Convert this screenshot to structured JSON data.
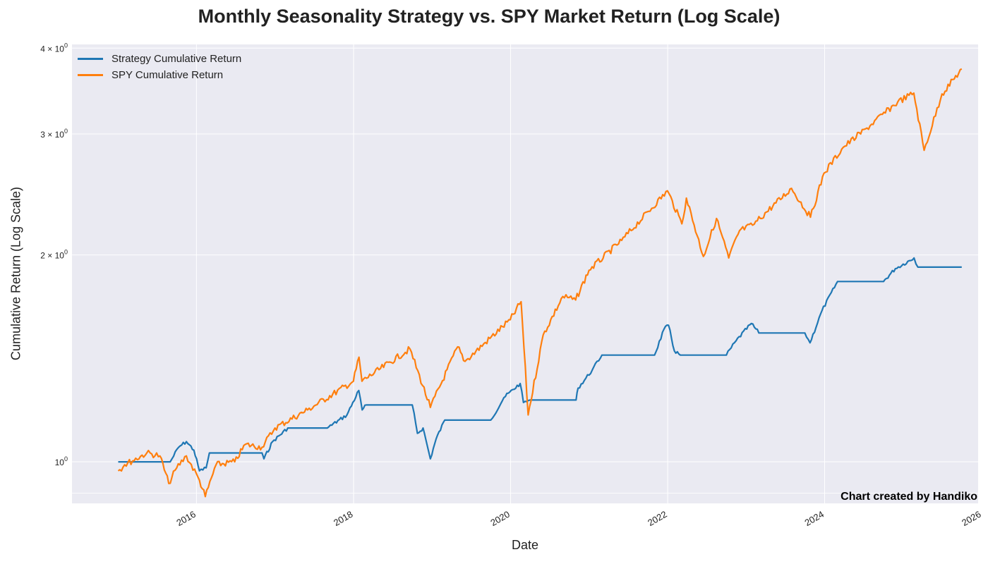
{
  "chart_data": {
    "type": "line",
    "title": "Monthly Seasonality Strategy vs. SPY Market Return (Log Scale)",
    "xlabel": "Date",
    "ylabel": "Cumulative Return (Log Scale)",
    "credit": "Chart created by Handiko",
    "y_scale": "log",
    "ylim": [
      0.87,
      4.05
    ],
    "xlim": [
      "2014-06-01",
      "2025-12-15"
    ],
    "grid": true,
    "legend_position": "upper-left",
    "y_ticks": [
      {
        "value": 1,
        "base": "10",
        "exp": "0"
      },
      {
        "value": 2,
        "base": "2 × 10",
        "exp": "0"
      },
      {
        "value": 3,
        "base": "3 × 10",
        "exp": "0"
      },
      {
        "value": 4,
        "base": "4 × 10",
        "exp": "0"
      }
    ],
    "x_ticks": [
      "2016",
      "2018",
      "2020",
      "2022",
      "2024",
      "2026"
    ],
    "series": [
      {
        "name": "Strategy Cumulative Return",
        "color": "#1f77b4",
        "points": [
          [
            "2015-01-02",
            1.0
          ],
          [
            "2015-09-01",
            1.0
          ],
          [
            "2015-10-10",
            1.05
          ],
          [
            "2015-11-15",
            1.07
          ],
          [
            "2015-12-20",
            1.04
          ],
          [
            "2016-01-15",
            0.97
          ],
          [
            "2016-02-15",
            0.98
          ],
          [
            "2016-03-01",
            1.03
          ],
          [
            "2016-11-01",
            1.03
          ],
          [
            "2016-11-10",
            1.01
          ],
          [
            "2016-12-20",
            1.07
          ],
          [
            "2017-03-01",
            1.12
          ],
          [
            "2017-09-01",
            1.12
          ],
          [
            "2017-12-01",
            1.17
          ],
          [
            "2018-01-25",
            1.27
          ],
          [
            "2018-02-10",
            1.19
          ],
          [
            "2018-03-01",
            1.21
          ],
          [
            "2018-10-01",
            1.21
          ],
          [
            "2018-10-25",
            1.1
          ],
          [
            "2018-11-20",
            1.12
          ],
          [
            "2018-12-24",
            1.01
          ],
          [
            "2019-01-20",
            1.08
          ],
          [
            "2019-03-01",
            1.15
          ],
          [
            "2019-10-01",
            1.15
          ],
          [
            "2019-12-01",
            1.24
          ],
          [
            "2020-02-15",
            1.3
          ],
          [
            "2020-03-01",
            1.22
          ],
          [
            "2020-04-01",
            1.23
          ],
          [
            "2020-11-01",
            1.23
          ],
          [
            "2020-11-10",
            1.28
          ],
          [
            "2021-01-15",
            1.36
          ],
          [
            "2021-03-01",
            1.43
          ],
          [
            "2021-11-01",
            1.43
          ],
          [
            "2021-12-15",
            1.56
          ],
          [
            "2022-01-05",
            1.58
          ],
          [
            "2022-02-01",
            1.45
          ],
          [
            "2022-03-01",
            1.43
          ],
          [
            "2022-10-01",
            1.43
          ],
          [
            "2022-11-15",
            1.5
          ],
          [
            "2023-01-25",
            1.59
          ],
          [
            "2023-03-01",
            1.54
          ],
          [
            "2023-10-01",
            1.54
          ],
          [
            "2023-10-25",
            1.49
          ],
          [
            "2023-12-20",
            1.66
          ],
          [
            "2024-03-01",
            1.83
          ],
          [
            "2024-10-01",
            1.83
          ],
          [
            "2024-11-25",
            1.91
          ],
          [
            "2025-02-20",
            1.98
          ],
          [
            "2025-03-10",
            1.92
          ],
          [
            "2025-09-30",
            1.92
          ]
        ]
      },
      {
        "name": "SPY Cumulative Return",
        "color": "#ff7f0e",
        "points": [
          [
            "2015-01-02",
            0.97
          ],
          [
            "2015-02-01",
            0.99
          ],
          [
            "2015-05-15",
            1.03
          ],
          [
            "2015-07-15",
            1.02
          ],
          [
            "2015-08-25",
            0.93
          ],
          [
            "2015-10-01",
            0.98
          ],
          [
            "2015-11-15",
            1.02
          ],
          [
            "2016-01-15",
            0.94
          ],
          [
            "2016-02-11",
            0.89
          ],
          [
            "2016-04-01",
            0.99
          ],
          [
            "2016-06-27",
            1.0
          ],
          [
            "2016-08-15",
            1.06
          ],
          [
            "2016-11-01",
            1.05
          ],
          [
            "2016-12-31",
            1.12
          ],
          [
            "2017-06-01",
            1.19
          ],
          [
            "2017-12-31",
            1.31
          ],
          [
            "2018-01-26",
            1.42
          ],
          [
            "2018-02-09",
            1.31
          ],
          [
            "2018-09-20",
            1.46
          ],
          [
            "2018-12-24",
            1.2
          ],
          [
            "2019-04-30",
            1.47
          ],
          [
            "2019-06-03",
            1.4
          ],
          [
            "2019-12-31",
            1.61
          ],
          [
            "2020-02-19",
            1.71
          ],
          [
            "2020-03-23",
            1.17
          ],
          [
            "2020-06-01",
            1.53
          ],
          [
            "2020-08-31",
            1.74
          ],
          [
            "2020-10-30",
            1.72
          ],
          [
            "2020-12-31",
            1.9
          ],
          [
            "2021-06-01",
            2.1
          ],
          [
            "2021-12-31",
            2.48
          ],
          [
            "2022-03-08",
            2.22
          ],
          [
            "2022-03-29",
            2.42
          ],
          [
            "2022-06-16",
            1.99
          ],
          [
            "2022-08-16",
            2.26
          ],
          [
            "2022-10-12",
            1.98
          ],
          [
            "2022-12-01",
            2.17
          ],
          [
            "2023-01-31",
            2.21
          ],
          [
            "2023-07-31",
            2.5
          ],
          [
            "2023-10-27",
            2.27
          ],
          [
            "2023-12-29",
            2.63
          ],
          [
            "2024-03-28",
            2.87
          ],
          [
            "2024-07-16",
            3.06
          ],
          [
            "2024-12-06",
            3.34
          ],
          [
            "2025-02-19",
            3.44
          ],
          [
            "2025-04-08",
            2.84
          ],
          [
            "2025-06-30",
            3.43
          ],
          [
            "2025-09-30",
            3.73
          ]
        ]
      }
    ]
  }
}
